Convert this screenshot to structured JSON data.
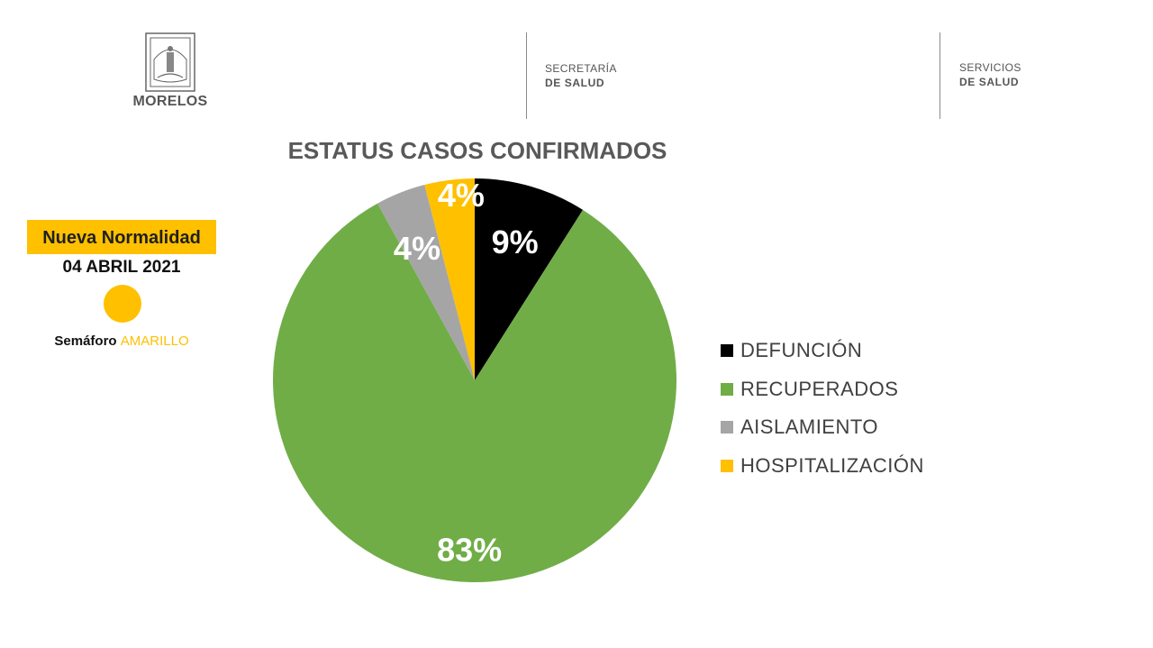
{
  "header": {
    "logo_text": "MORELOS",
    "org1_line1": "SECRETARÍA",
    "org1_line2": "DE SALUD",
    "org2_line1": "SERVICIOS",
    "org2_line2": "DE SALUD"
  },
  "status": {
    "badge": "Nueva Normalidad",
    "date": "04 ABRIL 2021",
    "semaforo_label": "Semáforo",
    "semaforo_color_name": "AMARILLO",
    "semaforo_color": "#FFC000"
  },
  "chart_data": {
    "type": "pie",
    "title": "ESTATUS CASOS CONFIRMADOS",
    "legend_position": "right",
    "slices": [
      {
        "name": "DEFUNCIÓN",
        "value": 9,
        "label": "9%",
        "color": "#000000"
      },
      {
        "name": "RECUPERADOS",
        "value": 83,
        "label": "83%",
        "color": "#70AD47"
      },
      {
        "name": "AISLAMIENTO",
        "value": 4,
        "label": "4%",
        "color": "#A5A5A5"
      },
      {
        "name": "HOSPITALIZACIÓN",
        "value": 4,
        "label": "4%",
        "color": "#FFC000"
      }
    ]
  }
}
